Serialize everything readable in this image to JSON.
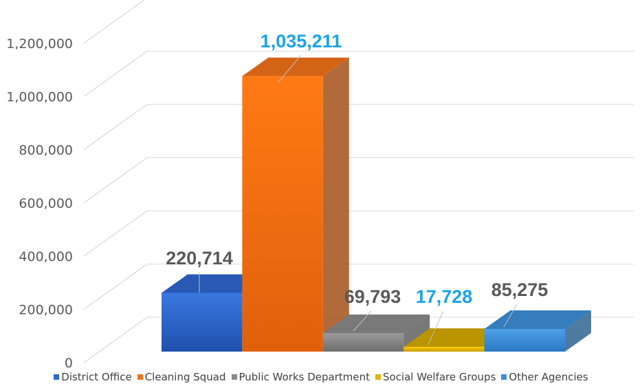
{
  "chart_data": {
    "type": "bar",
    "categories": [
      "District Office",
      "Cleaning Squad",
      "Public Works Department",
      "Social Welfare Groups",
      "Other Agencies"
    ],
    "values": [
      220714,
      1035211,
      69793,
      17728,
      85275
    ],
    "data_labels": [
      "220,714",
      "1,035,211",
      "69,793",
      "17,728",
      "85,275"
    ],
    "data_label_colors": [
      "#595959",
      "#1aa3e8",
      "#595959",
      "#1aa3e8",
      "#595959"
    ],
    "bar_colors": [
      "#2e67cf",
      "#f27219",
      "#8a8a8a",
      "#d4aa00",
      "#3d8fd6"
    ],
    "yticks": [
      "0",
      "200,000",
      "400,000",
      "600,000",
      "800,000",
      "1,000,000",
      "1,200,000"
    ],
    "ylim": [
      0,
      1400000
    ],
    "legend": [
      "District Office",
      "Cleaning Squad",
      "Public Works Department",
      "Social Welfare Groups",
      "Other Agencies"
    ],
    "legend_position": "bottom",
    "grid": true,
    "style": "3d-column"
  }
}
